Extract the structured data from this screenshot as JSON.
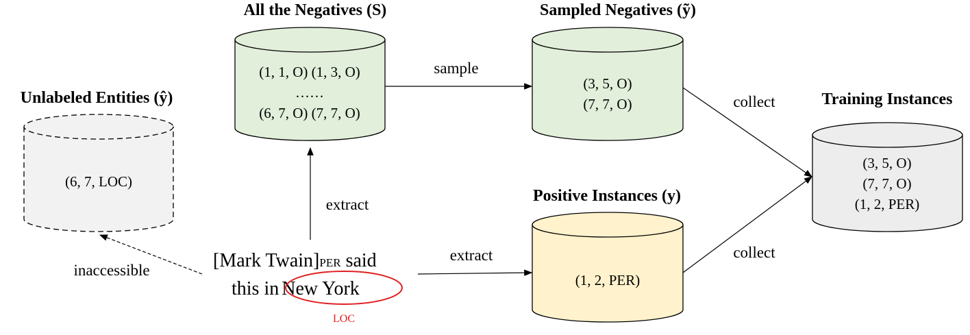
{
  "nodes": [
    {
      "title": "Unlabeled Entities (ŷ)",
      "lines": [
        "(6, 7, LOC)"
      ]
    },
    {
      "title": "All the Negatives (S)",
      "lines": [
        "(1, 1, O) (1, 3, O)",
        "……",
        "(6, 7, O) (7, 7, O)"
      ]
    },
    {
      "title": "Sampled Negatives (ỹ)",
      "lines": [
        "(3, 5, O)",
        "(7, 7, O)"
      ]
    },
    {
      "title": "Positive Instances (y)",
      "lines": [
        "(1, 2, PER)"
      ]
    },
    {
      "title": "Training Instances",
      "lines": [
        "(3, 5, O)",
        "(7, 7, O)",
        "(1, 2, PER)"
      ]
    }
  ],
  "sentence": {
    "line1": [
      "[Mark Twain]",
      "PER",
      "said"
    ],
    "line2": [
      "this in",
      "New York"
    ],
    "entity_label": "LOC"
  },
  "edges": {
    "sample": "sample",
    "collect_negatives": "collect",
    "collect_positives": "collect",
    "extract_negatives": "extract",
    "extract_positives": "extract",
    "inaccessible": "inaccessible"
  }
}
